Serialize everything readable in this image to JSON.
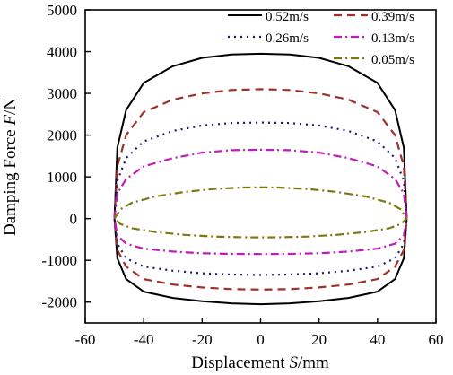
{
  "chart_data": {
    "type": "line",
    "title": "",
    "xlabel": {
      "prefix": "Displacement ",
      "var": "S",
      "suffix": "/mm"
    },
    "ylabel": {
      "prefix": "Damping Force ",
      "var": "F",
      "suffix": "/N"
    },
    "xlim": [
      -60,
      60
    ],
    "ylim": [
      -2500,
      5000
    ],
    "xticks": [
      -60,
      -40,
      -20,
      0,
      20,
      40,
      60
    ],
    "yticks": [
      5000,
      4000,
      3000,
      2000,
      1000,
      0,
      -1000,
      -2000
    ],
    "grid": false,
    "legend_position": "top-right",
    "series": [
      {
        "name": "0.52m/s",
        "color": "#000000",
        "style": "solid",
        "peak_extension": 3950,
        "peak_compression": -2050,
        "points": [
          [
            -50,
            0
          ],
          [
            -49,
            1700
          ],
          [
            -46,
            2600
          ],
          [
            -40,
            3250
          ],
          [
            -30,
            3650
          ],
          [
            -20,
            3850
          ],
          [
            -10,
            3930
          ],
          [
            0,
            3950
          ],
          [
            10,
            3930
          ],
          [
            20,
            3850
          ],
          [
            30,
            3650
          ],
          [
            40,
            3250
          ],
          [
            46,
            2600
          ],
          [
            49,
            1700
          ],
          [
            50,
            0
          ],
          [
            49,
            -950
          ],
          [
            46,
            -1450
          ],
          [
            40,
            -1750
          ],
          [
            30,
            -1900
          ],
          [
            20,
            -1980
          ],
          [
            10,
            -2030
          ],
          [
            0,
            -2050
          ],
          [
            -10,
            -2030
          ],
          [
            -20,
            -1980
          ],
          [
            -30,
            -1900
          ],
          [
            -40,
            -1750
          ],
          [
            -46,
            -1450
          ],
          [
            -49,
            -950
          ],
          [
            -50,
            0
          ]
        ]
      },
      {
        "name": "0.39m/s",
        "color": "#a0302c",
        "style": "dash",
        "peak_extension": 3100,
        "peak_compression": -1700,
        "points": [
          [
            -50,
            0
          ],
          [
            -49,
            1250
          ],
          [
            -46,
            2000
          ],
          [
            -40,
            2550
          ],
          [
            -30,
            2850
          ],
          [
            -20,
            3000
          ],
          [
            -10,
            3080
          ],
          [
            0,
            3100
          ],
          [
            10,
            3080
          ],
          [
            20,
            3000
          ],
          [
            30,
            2850
          ],
          [
            40,
            2550
          ],
          [
            46,
            2000
          ],
          [
            49,
            1250
          ],
          [
            50,
            0
          ],
          [
            49,
            -750
          ],
          [
            46,
            -1150
          ],
          [
            40,
            -1450
          ],
          [
            30,
            -1580
          ],
          [
            20,
            -1650
          ],
          [
            10,
            -1690
          ],
          [
            0,
            -1700
          ],
          [
            -10,
            -1690
          ],
          [
            -20,
            -1650
          ],
          [
            -30,
            -1580
          ],
          [
            -40,
            -1450
          ],
          [
            -46,
            -1150
          ],
          [
            -49,
            -750
          ],
          [
            -50,
            0
          ]
        ]
      },
      {
        "name": "0.26m/s",
        "color": "#1a1a6e",
        "style": "dot",
        "peak_extension": 2300,
        "peak_compression": -1350,
        "points": [
          [
            -50,
            0
          ],
          [
            -49,
            900
          ],
          [
            -46,
            1450
          ],
          [
            -40,
            1850
          ],
          [
            -30,
            2100
          ],
          [
            -20,
            2230
          ],
          [
            -10,
            2290
          ],
          [
            0,
            2300
          ],
          [
            10,
            2290
          ],
          [
            20,
            2230
          ],
          [
            30,
            2100
          ],
          [
            40,
            1850
          ],
          [
            46,
            1450
          ],
          [
            49,
            900
          ],
          [
            50,
            0
          ],
          [
            49,
            -600
          ],
          [
            46,
            -950
          ],
          [
            40,
            -1150
          ],
          [
            30,
            -1250
          ],
          [
            20,
            -1310
          ],
          [
            10,
            -1340
          ],
          [
            0,
            -1350
          ],
          [
            -10,
            -1340
          ],
          [
            -20,
            -1310
          ],
          [
            -30,
            -1250
          ],
          [
            -40,
            -1150
          ],
          [
            -46,
            -950
          ],
          [
            -49,
            -600
          ],
          [
            -50,
            0
          ]
        ]
      },
      {
        "name": "0.13m/s",
        "color": "#c01cb8",
        "style": "dashdot",
        "peak_extension": 1650,
        "peak_compression": -850,
        "points": [
          [
            -50,
            0
          ],
          [
            -49,
            600
          ],
          [
            -46,
            950
          ],
          [
            -40,
            1250
          ],
          [
            -30,
            1450
          ],
          [
            -20,
            1580
          ],
          [
            -10,
            1640
          ],
          [
            0,
            1650
          ],
          [
            10,
            1640
          ],
          [
            20,
            1580
          ],
          [
            30,
            1450
          ],
          [
            40,
            1250
          ],
          [
            46,
            950
          ],
          [
            49,
            600
          ],
          [
            50,
            0
          ],
          [
            49,
            -400
          ],
          [
            46,
            -600
          ],
          [
            40,
            -720
          ],
          [
            30,
            -790
          ],
          [
            20,
            -830
          ],
          [
            10,
            -845
          ],
          [
            0,
            -850
          ],
          [
            -10,
            -845
          ],
          [
            -20,
            -830
          ],
          [
            -30,
            -790
          ],
          [
            -40,
            -720
          ],
          [
            -46,
            -600
          ],
          [
            -49,
            -400
          ],
          [
            -50,
            0
          ]
        ]
      },
      {
        "name": "0.05m/s",
        "color": "#7a7a10",
        "style": "dashdot",
        "peak_extension": 750,
        "peak_compression": -450,
        "points": [
          [
            -50,
            0
          ],
          [
            -48,
            220
          ],
          [
            -44,
            380
          ],
          [
            -36,
            530
          ],
          [
            -26,
            640
          ],
          [
            -16,
            710
          ],
          [
            -6,
            745
          ],
          [
            0,
            750
          ],
          [
            6,
            745
          ],
          [
            16,
            710
          ],
          [
            26,
            640
          ],
          [
            36,
            530
          ],
          [
            44,
            380
          ],
          [
            48,
            220
          ],
          [
            50,
            0
          ],
          [
            48,
            -130
          ],
          [
            44,
            -230
          ],
          [
            36,
            -320
          ],
          [
            26,
            -390
          ],
          [
            16,
            -430
          ],
          [
            6,
            -448
          ],
          [
            0,
            -450
          ],
          [
            -6,
            -448
          ],
          [
            -16,
            -430
          ],
          [
            -26,
            -390
          ],
          [
            -36,
            -320
          ],
          [
            -44,
            -230
          ],
          [
            -48,
            -130
          ],
          [
            -50,
            0
          ]
        ]
      }
    ]
  }
}
